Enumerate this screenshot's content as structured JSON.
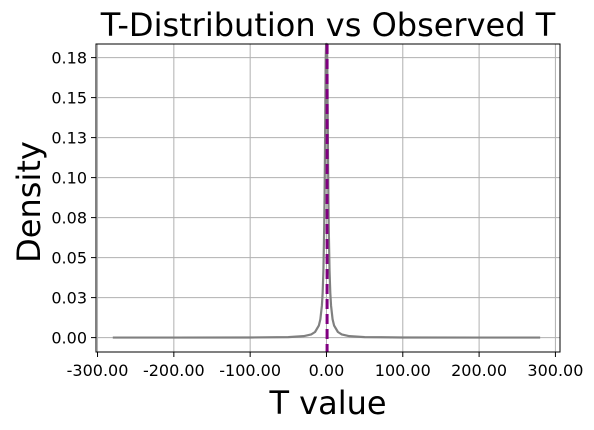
{
  "chart_data": {
    "type": "line",
    "title": "T-Distribution vs Observed T",
    "xlabel": "T value",
    "ylabel": "Density",
    "xlim": [
      -302,
      306
    ],
    "ylim": [
      -0.009,
      0.1835
    ],
    "xticks": [
      -300,
      -200,
      -100,
      0,
      100,
      200,
      300
    ],
    "xtick_labels": [
      "-300.00",
      "-200.00",
      "-100.00",
      "0.00",
      "100.00",
      "200.00",
      "300.00"
    ],
    "yticks": [
      0.0,
      0.025,
      0.05,
      0.075,
      0.1,
      0.125,
      0.15,
      0.175
    ],
    "ytick_labels": [
      "0.00",
      "0.03",
      "0.05",
      "0.08",
      "0.10",
      "0.13",
      "0.15",
      "0.18"
    ],
    "grid": true,
    "series": [
      {
        "kind": "line",
        "color": "#808080",
        "style": "solid",
        "x": [
          -280,
          -200,
          -100,
          -50,
          -30,
          -20,
          -15,
          -10,
          -8,
          -6,
          -5,
          -4,
          -3,
          -2.5,
          -2,
          -1.5,
          -1,
          -0.5,
          0,
          0.5,
          1,
          1.5,
          2,
          2.5,
          3,
          4,
          5,
          6,
          8,
          10,
          15,
          20,
          30,
          50,
          100,
          200,
          280
        ],
        "y": [
          1e-05,
          2e-05,
          8e-05,
          0.0003,
          0.0009,
          0.002,
          0.0035,
          0.0075,
          0.0115,
          0.02,
          0.028,
          0.042,
          0.068,
          0.088,
          0.114,
          0.145,
          0.175,
          0.19,
          0.195,
          0.19,
          0.175,
          0.145,
          0.114,
          0.088,
          0.068,
          0.042,
          0.028,
          0.02,
          0.0115,
          0.0075,
          0.0035,
          0.002,
          0.0009,
          0.0003,
          8e-05,
          2e-05,
          1e-05
        ]
      }
    ],
    "observed": {
      "kind": "vline",
      "x": 0.8,
      "color": "#800080",
      "style": "dashed"
    }
  }
}
